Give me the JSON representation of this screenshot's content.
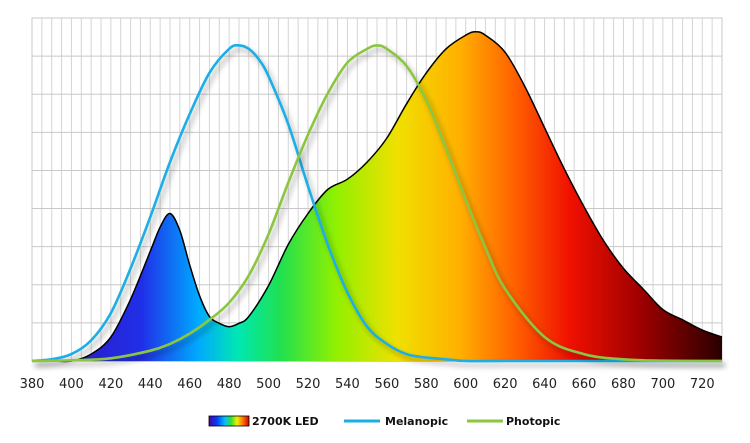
{
  "chart_data": {
    "type": "area",
    "title": "",
    "xlabel": "",
    "ylabel": "",
    "xlim": [
      380,
      730
    ],
    "ylim": [
      0,
      1.0
    ],
    "grid": true,
    "x_ticks": [
      380,
      400,
      420,
      440,
      460,
      480,
      500,
      520,
      540,
      560,
      580,
      600,
      620,
      640,
      660,
      680,
      700,
      720
    ],
    "legend_position": "bottom",
    "series": [
      {
        "name": "2700K LED",
        "style": "filled-spectrum",
        "x": [
          380,
          390,
          400,
          410,
          420,
          430,
          440,
          445,
          450,
          455,
          460,
          465,
          470,
          475,
          480,
          485,
          490,
          500,
          510,
          520,
          530,
          540,
          550,
          560,
          570,
          580,
          590,
          600,
          605,
          610,
          620,
          630,
          640,
          650,
          660,
          670,
          680,
          690,
          700,
          710,
          720,
          730
        ],
        "y": [
          0.0,
          0.0,
          0.0,
          0.02,
          0.07,
          0.18,
          0.32,
          0.39,
          0.43,
          0.38,
          0.28,
          0.19,
          0.13,
          0.11,
          0.1,
          0.11,
          0.13,
          0.22,
          0.34,
          0.43,
          0.5,
          0.53,
          0.58,
          0.65,
          0.75,
          0.84,
          0.91,
          0.95,
          0.96,
          0.95,
          0.9,
          0.8,
          0.68,
          0.56,
          0.45,
          0.35,
          0.27,
          0.21,
          0.15,
          0.12,
          0.09,
          0.07
        ]
      },
      {
        "name": "Melanopic",
        "color": "#1aaee6",
        "x": [
          380,
          390,
          400,
          410,
          420,
          430,
          440,
          450,
          460,
          470,
          480,
          485,
          490,
          495,
          500,
          510,
          520,
          530,
          540,
          550,
          560,
          570,
          580,
          590,
          600,
          620,
          640,
          660,
          680,
          700,
          730
        ],
        "y": [
          0.0,
          0.005,
          0.02,
          0.06,
          0.14,
          0.27,
          0.42,
          0.58,
          0.72,
          0.84,
          0.91,
          0.92,
          0.91,
          0.88,
          0.83,
          0.69,
          0.51,
          0.34,
          0.2,
          0.1,
          0.05,
          0.02,
          0.01,
          0.005,
          0.0,
          0.0,
          0.0,
          0.0,
          0.0,
          0.0,
          0.0
        ]
      },
      {
        "name": "Photopic",
        "color": "#8cc63f",
        "x": [
          380,
          400,
          420,
          440,
          450,
          460,
          470,
          480,
          490,
          500,
          510,
          520,
          530,
          540,
          550,
          555,
          560,
          570,
          580,
          590,
          600,
          610,
          620,
          640,
          660,
          680,
          700,
          730
        ],
        "y": [
          0.0,
          0.002,
          0.008,
          0.03,
          0.05,
          0.08,
          0.12,
          0.17,
          0.25,
          0.37,
          0.52,
          0.66,
          0.78,
          0.87,
          0.91,
          0.92,
          0.91,
          0.86,
          0.76,
          0.62,
          0.47,
          0.33,
          0.21,
          0.07,
          0.02,
          0.005,
          0.001,
          0.0
        ]
      }
    ]
  }
}
